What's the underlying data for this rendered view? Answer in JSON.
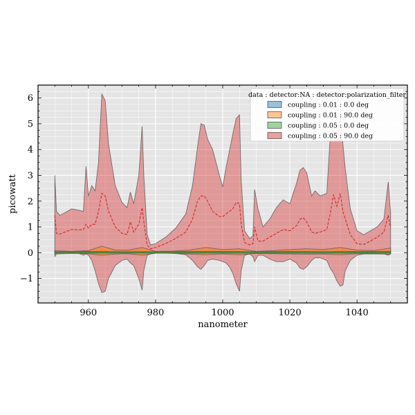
{
  "chart_data": {
    "type": "area",
    "xlabel": "nanometer",
    "ylabel": "picowatt",
    "xlim": [
      945,
      1055
    ],
    "ylim": [
      -1.95,
      6.5
    ],
    "xticks": [
      960,
      980,
      1000,
      1020,
      1040
    ],
    "yticks": [
      -1,
      0,
      1,
      2,
      3,
      4,
      5,
      6
    ],
    "ytick_labels": [
      "−1",
      "0",
      "1",
      "2",
      "3",
      "4",
      "5",
      "6"
    ],
    "grid": true,
    "legend_position": "top-right",
    "legend_title": "data : detector:NA : detector:polarization_filter",
    "series": [
      {
        "name": "coupling : 0.01 : 0.0 deg",
        "color": "#1f77b4",
        "x": [
          950,
          960,
          970,
          980,
          990,
          1000,
          1010,
          1020,
          1030,
          1040,
          1050
        ],
        "upper": [
          0.03,
          0.04,
          0.03,
          0.03,
          0.03,
          0.04,
          0.03,
          0.03,
          0.03,
          0.03,
          0.03
        ],
        "lower": [
          -0.02,
          -0.02,
          -0.02,
          -0.02,
          -0.02,
          -0.02,
          -0.02,
          -0.02,
          -0.02,
          -0.02,
          -0.02
        ],
        "mean": [
          0.005,
          0.01,
          0.005,
          0.005,
          0.005,
          0.01,
          0.005,
          0.005,
          0.005,
          0.005,
          0.005
        ]
      },
      {
        "name": "coupling : 0.01 : 90.0 deg",
        "color": "#ff7f0e",
        "x": [
          950,
          955,
          960,
          964,
          968,
          972,
          976,
          980,
          985,
          990,
          995,
          1000,
          1005,
          1010,
          1015,
          1020,
          1025,
          1030,
          1035,
          1040,
          1045,
          1050
        ],
        "upper": [
          0.08,
          0.05,
          0.08,
          0.25,
          0.1,
          0.1,
          0.2,
          0.05,
          0.06,
          0.1,
          0.2,
          0.12,
          0.15,
          0.05,
          0.08,
          0.12,
          0.15,
          0.12,
          0.2,
          0.1,
          0.08,
          0.18
        ],
        "lower": [
          -0.05,
          -0.03,
          -0.04,
          -0.1,
          -0.05,
          -0.04,
          -0.1,
          -0.02,
          -0.02,
          -0.05,
          -0.08,
          -0.05,
          -0.08,
          -0.03,
          -0.04,
          -0.05,
          -0.06,
          -0.05,
          -0.08,
          -0.04,
          -0.04,
          -0.06
        ],
        "mean": [
          0.01,
          0.01,
          0.02,
          0.08,
          0.02,
          0.03,
          0.05,
          0.01,
          0.02,
          0.03,
          0.06,
          0.04,
          0.04,
          0.01,
          0.02,
          0.04,
          0.05,
          0.04,
          0.06,
          0.03,
          0.02,
          0.06
        ]
      },
      {
        "name": "coupling : 0.05 : 0.0 deg",
        "color": "#2ca02c",
        "x": [
          950,
          960,
          970,
          980,
          990,
          1000,
          1010,
          1020,
          1030,
          1040,
          1050
        ],
        "upper": [
          0.04,
          0.05,
          0.04,
          0.04,
          0.05,
          0.05,
          0.04,
          0.05,
          0.04,
          0.05,
          0.05
        ],
        "lower": [
          -0.01,
          -0.01,
          -0.01,
          -0.01,
          -0.01,
          -0.01,
          -0.01,
          -0.01,
          -0.01,
          -0.01,
          -0.01
        ],
        "mean": [
          0.015,
          0.02,
          0.015,
          0.015,
          0.02,
          0.02,
          0.015,
          0.02,
          0.015,
          0.02,
          0.02
        ]
      },
      {
        "name": "coupling : 0.05 : 90.0 deg",
        "color": "#d62728",
        "x": [
          950,
          950.5,
          951.5,
          953,
          955,
          957,
          958.5,
          959.3,
          960,
          961,
          962,
          963,
          964,
          965,
          966,
          968,
          970,
          971.5,
          972.5,
          973.5,
          975,
          976,
          976.5,
          977.5,
          978.5,
          980,
          983,
          986,
          989,
          991,
          992.5,
          993.5,
          994.5,
          995.5,
          997,
          999,
          1000,
          1001,
          1002,
          1003,
          1004,
          1005,
          1005.5,
          1006.5,
          1008,
          1009,
          1009.5,
          1010.5,
          1012,
          1014,
          1016,
          1018,
          1020,
          1022,
          1023,
          1024,
          1025,
          1026.5,
          1027.5,
          1029,
          1031,
          1032,
          1033,
          1034,
          1035,
          1035.8,
          1036.5,
          1038,
          1040,
          1042,
          1044,
          1046,
          1048,
          1049.3,
          1050
        ],
        "upper": [
          3.0,
          1.6,
          1.45,
          1.55,
          1.7,
          1.65,
          1.6,
          3.35,
          2.2,
          2.6,
          2.4,
          3.5,
          6.15,
          5.9,
          4.2,
          2.6,
          1.95,
          1.75,
          2.35,
          1.9,
          3.0,
          4.9,
          3.0,
          0.7,
          0.3,
          0.35,
          0.6,
          0.95,
          1.5,
          2.6,
          4.1,
          5.0,
          4.95,
          4.4,
          4.0,
          3.0,
          2.55,
          3.3,
          3.95,
          4.6,
          5.2,
          5.35,
          2.8,
          0.85,
          0.55,
          0.65,
          2.45,
          1.7,
          1.0,
          1.3,
          1.75,
          2.05,
          1.9,
          2.7,
          3.2,
          3.3,
          3.1,
          2.2,
          2.4,
          2.2,
          2.3,
          4.45,
          4.7,
          4.6,
          5.3,
          4.2,
          3.25,
          1.7,
          0.85,
          0.7,
          0.85,
          1.0,
          1.3,
          2.75,
          1.55
        ],
        "lower": [
          -0.15,
          -0.05,
          -0.03,
          -0.02,
          -0.01,
          -0.02,
          -0.1,
          -0.05,
          -0.1,
          -0.3,
          -0.7,
          -1.2,
          -1.55,
          -1.5,
          -1.0,
          -0.5,
          -0.3,
          -0.25,
          -0.4,
          -0.5,
          -1.0,
          -1.45,
          -0.7,
          -0.1,
          -0.05,
          -0.02,
          -0.02,
          -0.03,
          -0.08,
          -0.3,
          -0.55,
          -0.65,
          -0.5,
          -0.3,
          -0.25,
          -0.3,
          -0.35,
          -0.4,
          -0.55,
          -0.8,
          -1.2,
          -1.5,
          -0.7,
          -0.1,
          -0.05,
          -0.15,
          -0.35,
          -0.1,
          -0.1,
          -0.25,
          -0.35,
          -0.35,
          -0.25,
          -0.4,
          -0.6,
          -0.65,
          -0.55,
          -0.3,
          -0.2,
          -0.2,
          -0.3,
          -0.6,
          -0.8,
          -1.1,
          -1.3,
          -1.25,
          -0.7,
          -0.3,
          -0.1,
          -0.05,
          -0.05,
          -0.05,
          -0.05,
          -0.1,
          -0.05
        ],
        "mean": [
          1.45,
          0.75,
          0.72,
          0.8,
          0.9,
          0.88,
          0.9,
          1.1,
          0.95,
          1.1,
          1.1,
          1.6,
          2.3,
          2.2,
          1.6,
          1.0,
          0.75,
          0.7,
          1.2,
          0.8,
          1.1,
          1.75,
          1.2,
          0.3,
          0.15,
          0.2,
          0.35,
          0.55,
          0.8,
          1.3,
          2.0,
          2.2,
          2.2,
          2.0,
          1.6,
          1.4,
          1.4,
          1.5,
          1.6,
          1.7,
          1.95,
          1.9,
          1.1,
          0.4,
          0.3,
          0.35,
          1.0,
          0.45,
          0.45,
          0.6,
          0.75,
          0.9,
          0.85,
          1.05,
          1.3,
          1.35,
          1.2,
          0.8,
          0.75,
          0.8,
          0.9,
          1.5,
          2.25,
          1.8,
          2.3,
          1.6,
          1.3,
          0.7,
          0.35,
          0.32,
          0.45,
          0.6,
          0.8,
          1.45,
          0.95
        ]
      }
    ]
  }
}
